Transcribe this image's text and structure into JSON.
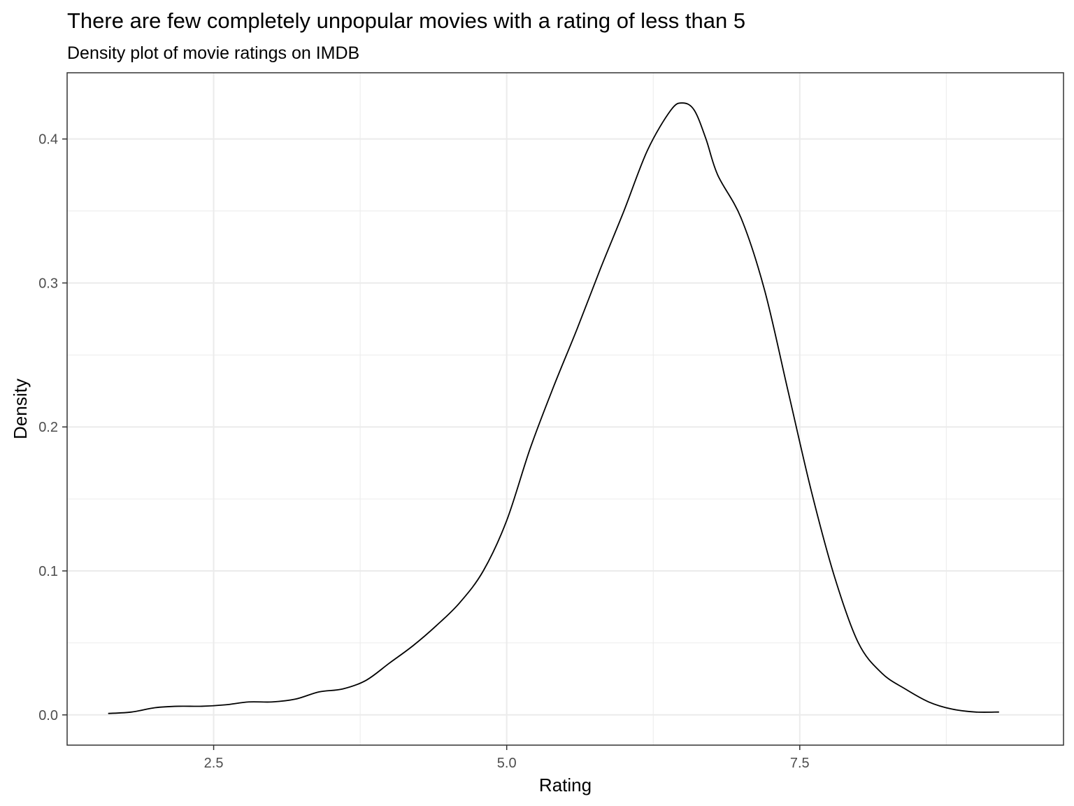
{
  "chart_data": {
    "type": "line",
    "title": "There are few completely unpopular movies with a rating of less than 5",
    "subtitle": "Density plot of movie ratings on IMDB",
    "xlabel": "Rating",
    "ylabel": "Density",
    "xlim": [
      1.25,
      9.75
    ],
    "ylim": [
      -0.021,
      0.446
    ],
    "x_ticks": [
      2.5,
      5.0,
      7.5
    ],
    "x_tick_labels": [
      "2.5",
      "5.0",
      "7.5"
    ],
    "y_ticks": [
      0.0,
      0.1,
      0.2,
      0.3,
      0.4
    ],
    "y_tick_labels": [
      "0.0",
      "0.1",
      "0.2",
      "0.3",
      "0.4"
    ],
    "x_minor_ticks": [
      3.75,
      6.25,
      8.75
    ],
    "y_minor_ticks": [
      0.05,
      0.15,
      0.25,
      0.35
    ],
    "grid": true,
    "legend": "none",
    "line_color": "#000000",
    "series": [
      {
        "x": [
          1.6,
          1.8,
          2.0,
          2.2,
          2.4,
          2.6,
          2.8,
          3.0,
          3.2,
          3.4,
          3.6,
          3.8,
          4.0,
          4.2,
          4.4,
          4.6,
          4.8,
          5.0,
          5.2,
          5.4,
          5.6,
          5.8,
          6.0,
          6.2,
          6.4,
          6.5,
          6.6,
          6.7,
          6.8,
          7.0,
          7.2,
          7.4,
          7.6,
          7.8,
          8.0,
          8.2,
          8.4,
          8.6,
          8.8,
          9.0,
          9.2
        ],
        "y": [
          0.001,
          0.002,
          0.005,
          0.006,
          0.006,
          0.007,
          0.009,
          0.009,
          0.011,
          0.016,
          0.018,
          0.024,
          0.036,
          0.048,
          0.062,
          0.078,
          0.1,
          0.135,
          0.185,
          0.228,
          0.268,
          0.31,
          0.35,
          0.392,
          0.42,
          0.425,
          0.42,
          0.4,
          0.375,
          0.345,
          0.295,
          0.225,
          0.155,
          0.095,
          0.05,
          0.029,
          0.018,
          0.009,
          0.004,
          0.002,
          0.002
        ]
      }
    ]
  }
}
